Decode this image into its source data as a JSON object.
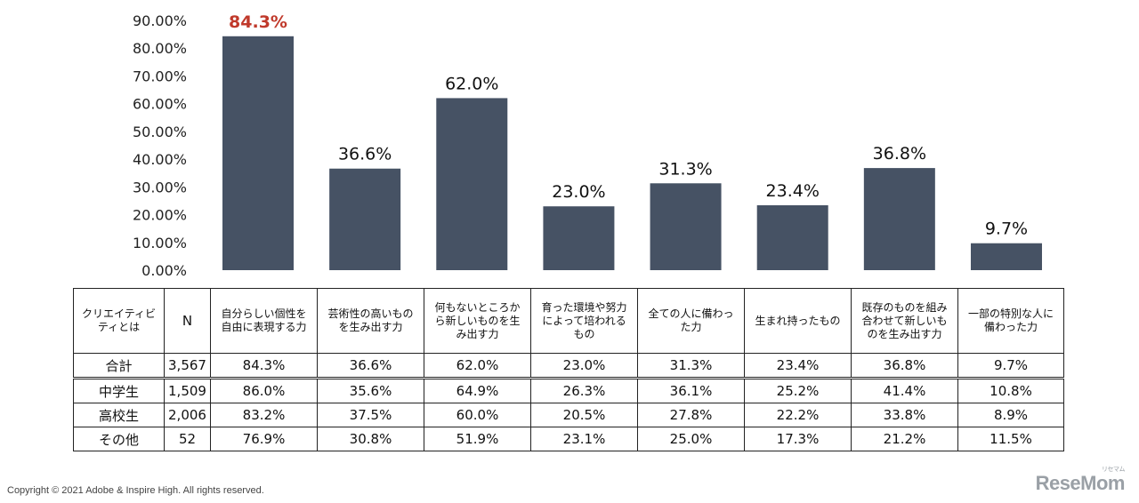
{
  "chart_data": {
    "type": "bar",
    "categories": [
      "自分らしい個性を自由に表現する力",
      "芸術性の高いものを生み出す力",
      "何もないところから新しいものを生み出す力",
      "育った環境や努力によって培われるもの",
      "全ての人に備わった力",
      "生まれ持ったもの",
      "既存のものを組み合わせて新しいものを生み出す力",
      "一部の特別な人に備わった力"
    ],
    "values": [
      84.3,
      36.6,
      62.0,
      23.0,
      31.3,
      23.4,
      36.8,
      9.7
    ],
    "value_labels": [
      "84.3%",
      "36.6%",
      "62.0%",
      "23.0%",
      "31.3%",
      "23.4%",
      "36.8%",
      "9.7%"
    ],
    "highlight_index": 0,
    "ylim": [
      0,
      90
    ],
    "yticks": [
      "0.00%",
      "10.00%",
      "20.00%",
      "30.00%",
      "40.00%",
      "50.00%",
      "60.00%",
      "70.00%",
      "80.00%",
      "90.00%"
    ],
    "grid": false,
    "colors": {
      "bar": "#465264",
      "highlight_label": "#c0392b"
    }
  },
  "table": {
    "corner_header": [
      "クリエイティビ",
      "ティとは"
    ],
    "n_header": "N",
    "column_headers": [
      [
        "自分らしい個性を",
        "自由に表現する力"
      ],
      [
        "芸術性の高いもの",
        "を生み出す力"
      ],
      [
        "何もないところか",
        "ら新しいものを生",
        "み出す力"
      ],
      [
        "育った環境や努力",
        "によって培われる",
        "もの"
      ],
      [
        "全ての人に備わっ",
        "た力"
      ],
      [
        "生まれ持ったもの"
      ],
      [
        "既存のものを組み",
        "合わせて新しいも",
        "のを生み出す力"
      ],
      [
        "一部の特別な人に",
        "備わった力"
      ]
    ],
    "rows": [
      {
        "label": "合計",
        "n": "3,567",
        "values": [
          "84.3%",
          "36.6%",
          "62.0%",
          "23.0%",
          "31.3%",
          "23.4%",
          "36.8%",
          "9.7%"
        ]
      },
      {
        "label": "中学生",
        "n": "1,509",
        "values": [
          "86.0%",
          "35.6%",
          "64.9%",
          "26.3%",
          "36.1%",
          "25.2%",
          "41.4%",
          "10.8%"
        ]
      },
      {
        "label": "高校生",
        "n": "2,006",
        "values": [
          "83.2%",
          "37.5%",
          "60.0%",
          "20.5%",
          "27.8%",
          "22.2%",
          "33.8%",
          "8.9%"
        ]
      },
      {
        "label": "その他",
        "n": "52",
        "values": [
          "76.9%",
          "30.8%",
          "51.9%",
          "23.1%",
          "25.0%",
          "17.3%",
          "21.2%",
          "11.5%"
        ]
      }
    ]
  },
  "footer": {
    "copyright": "Copyright © 2021 Adobe & Inspire High. All rights reserved.",
    "logo": "ReseMom",
    "logo_sub": "リセマム"
  }
}
